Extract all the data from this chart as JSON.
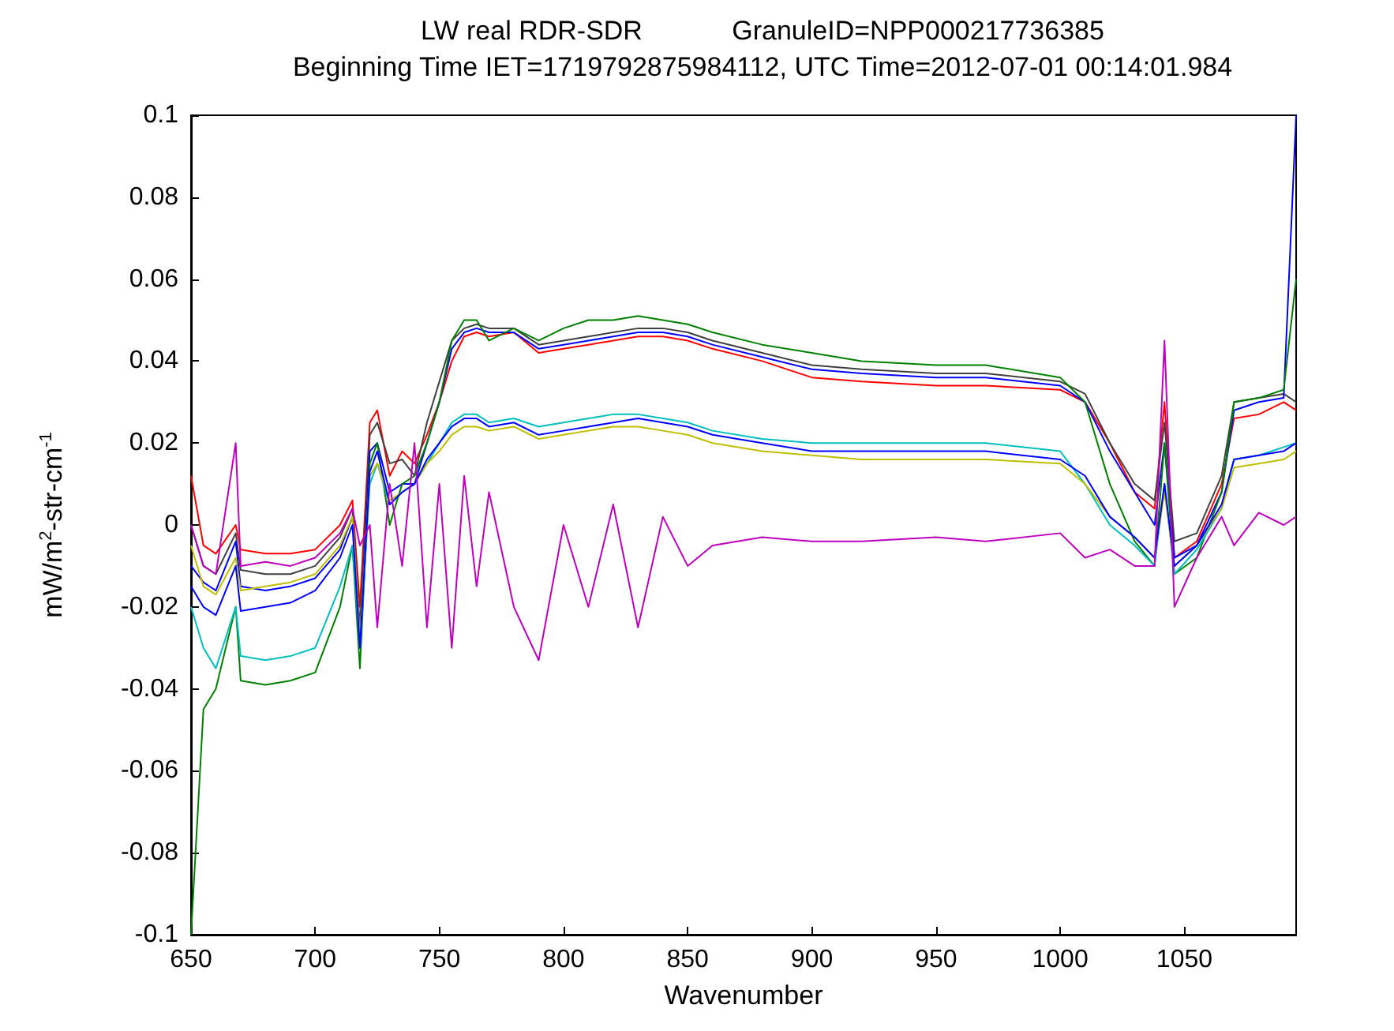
{
  "chart_data": {
    "type": "line",
    "title": "LW real RDR-SDR            GranuleID=NPP000217736385",
    "subtitle": "Beginning Time IET=1719792875984112, UTC Time=2012-07-01 00:14:01.984",
    "xlabel": "Wavenumber",
    "ylabel": "mW/m$^{2}$-str-cm$^{-1}$",
    "x": [
      650,
      655,
      660,
      668,
      670,
      680,
      690,
      700,
      710,
      715,
      718,
      722,
      725,
      730,
      735,
      740,
      745,
      750,
      755,
      760,
      765,
      770,
      780,
      790,
      800,
      810,
      820,
      830,
      840,
      850,
      860,
      880,
      900,
      920,
      950,
      970,
      1000,
      1010,
      1020,
      1030,
      1038,
      1042,
      1046,
      1055,
      1065,
      1070,
      1080,
      1090,
      1095
    ],
    "series": [
      {
        "color": "#ff0000",
        "values": [
          0.012,
          -0.005,
          -0.007,
          0.0,
          -0.006,
          -0.007,
          -0.007,
          -0.006,
          0.0,
          0.006,
          -0.02,
          0.025,
          0.028,
          0.012,
          0.018,
          0.015,
          0.022,
          0.03,
          0.04,
          0.046,
          0.047,
          0.046,
          0.047,
          0.042,
          0.043,
          0.044,
          0.045,
          0.046,
          0.046,
          0.045,
          0.043,
          0.04,
          0.036,
          0.035,
          0.034,
          0.034,
          0.033,
          0.03,
          0.02,
          0.008,
          0.004,
          0.03,
          -0.008,
          -0.004,
          0.01,
          0.026,
          0.027,
          0.03,
          0.028
        ]
      },
      {
        "color": "#404040",
        "values": [
          0.0,
          -0.01,
          -0.012,
          -0.002,
          -0.011,
          -0.012,
          -0.012,
          -0.01,
          -0.003,
          0.004,
          -0.025,
          0.022,
          0.025,
          0.015,
          0.016,
          0.012,
          0.025,
          0.035,
          0.045,
          0.048,
          0.049,
          0.048,
          0.048,
          0.044,
          0.045,
          0.046,
          0.047,
          0.048,
          0.048,
          0.047,
          0.045,
          0.042,
          0.039,
          0.038,
          0.037,
          0.037,
          0.035,
          0.032,
          0.02,
          0.01,
          0.006,
          0.025,
          -0.004,
          -0.002,
          0.012,
          0.03,
          0.031,
          0.032,
          0.03
        ]
      },
      {
        "color": "#0000ff",
        "values": [
          -0.01,
          -0.014,
          -0.016,
          -0.004,
          -0.015,
          -0.016,
          -0.015,
          -0.013,
          -0.006,
          0.002,
          -0.03,
          0.018,
          0.02,
          0.008,
          0.01,
          0.01,
          0.02,
          0.03,
          0.043,
          0.047,
          0.048,
          0.047,
          0.047,
          0.043,
          0.044,
          0.045,
          0.046,
          0.047,
          0.047,
          0.046,
          0.044,
          0.041,
          0.038,
          0.037,
          0.036,
          0.036,
          0.034,
          0.03,
          0.018,
          0.008,
          0.0,
          0.02,
          -0.008,
          -0.005,
          0.008,
          0.028,
          0.03,
          0.031,
          0.1
        ]
      },
      {
        "color": "#008000",
        "values": [
          -0.1,
          -0.045,
          -0.04,
          -0.02,
          -0.038,
          -0.039,
          -0.038,
          -0.036,
          -0.02,
          -0.005,
          -0.035,
          0.015,
          0.02,
          0.0,
          0.01,
          0.012,
          0.02,
          0.03,
          0.045,
          0.05,
          0.05,
          0.045,
          0.048,
          0.045,
          0.048,
          0.05,
          0.05,
          0.051,
          0.05,
          0.049,
          0.047,
          0.044,
          0.042,
          0.04,
          0.039,
          0.039,
          0.036,
          0.03,
          0.01,
          -0.004,
          -0.01,
          0.02,
          -0.012,
          -0.008,
          0.008,
          0.03,
          0.031,
          0.033,
          0.06
        ]
      },
      {
        "color": "#00bfbf",
        "values": [
          -0.02,
          -0.03,
          -0.035,
          -0.02,
          -0.032,
          -0.033,
          -0.032,
          -0.03,
          -0.015,
          -0.005,
          -0.03,
          0.01,
          0.015,
          0.005,
          0.008,
          0.01,
          0.015,
          0.02,
          0.025,
          0.027,
          0.027,
          0.025,
          0.026,
          0.024,
          0.025,
          0.026,
          0.027,
          0.027,
          0.026,
          0.025,
          0.023,
          0.021,
          0.02,
          0.02,
          0.02,
          0.02,
          0.018,
          0.01,
          0.0,
          -0.005,
          -0.01,
          0.01,
          -0.012,
          -0.006,
          0.004,
          0.016,
          0.017,
          0.019,
          0.02
        ]
      },
      {
        "color": "#bfbf00",
        "values": [
          -0.005,
          -0.015,
          -0.017,
          -0.008,
          -0.016,
          -0.015,
          -0.014,
          -0.012,
          -0.005,
          0.002,
          -0.028,
          0.012,
          0.015,
          0.006,
          0.008,
          0.01,
          0.015,
          0.018,
          0.022,
          0.024,
          0.024,
          0.023,
          0.024,
          0.021,
          0.022,
          0.023,
          0.024,
          0.024,
          0.023,
          0.022,
          0.02,
          0.018,
          0.017,
          0.016,
          0.016,
          0.016,
          0.015,
          0.01,
          0.002,
          -0.003,
          -0.008,
          0.008,
          -0.01,
          -0.005,
          0.004,
          0.014,
          0.015,
          0.016,
          0.018
        ]
      },
      {
        "color": "#0000ff",
        "values": [
          -0.015,
          -0.02,
          -0.022,
          -0.01,
          -0.021,
          -0.02,
          -0.019,
          -0.016,
          -0.008,
          0.0,
          -0.03,
          0.013,
          0.018,
          0.005,
          0.008,
          0.01,
          0.016,
          0.02,
          0.024,
          0.026,
          0.026,
          0.024,
          0.025,
          0.022,
          0.023,
          0.024,
          0.025,
          0.026,
          0.025,
          0.024,
          0.022,
          0.02,
          0.018,
          0.018,
          0.018,
          0.018,
          0.016,
          0.012,
          0.002,
          -0.003,
          -0.008,
          0.01,
          -0.01,
          -0.005,
          0.005,
          0.016,
          0.017,
          0.018,
          0.02
        ]
      },
      {
        "color": "#bf00bf",
        "values": [
          0.0,
          -0.01,
          -0.012,
          0.02,
          -0.01,
          -0.009,
          -0.01,
          -0.008,
          -0.002,
          0.004,
          -0.005,
          0.0,
          -0.025,
          0.01,
          -0.01,
          0.02,
          -0.025,
          0.01,
          -0.03,
          0.012,
          -0.015,
          0.008,
          -0.02,
          -0.033,
          0.0,
          -0.02,
          0.005,
          -0.025,
          0.002,
          -0.01,
          -0.005,
          -0.003,
          -0.004,
          -0.004,
          -0.003,
          -0.004,
          -0.002,
          -0.008,
          -0.006,
          -0.01,
          -0.01,
          0.045,
          -0.02,
          -0.008,
          0.002,
          -0.005,
          0.003,
          0.0,
          0.002
        ]
      }
    ],
    "xlim": [
      650,
      1095
    ],
    "xticks": [
      650,
      700,
      750,
      800,
      850,
      900,
      950,
      1000,
      1050
    ],
    "ylim": [
      -0.1,
      0.1
    ],
    "yticks": [
      -0.1,
      -0.08,
      -0.06,
      -0.04,
      -0.02,
      0,
      0.02,
      0.04,
      0.06,
      0.08,
      0.1
    ],
    "marker": "none",
    "line_style": "solid"
  }
}
